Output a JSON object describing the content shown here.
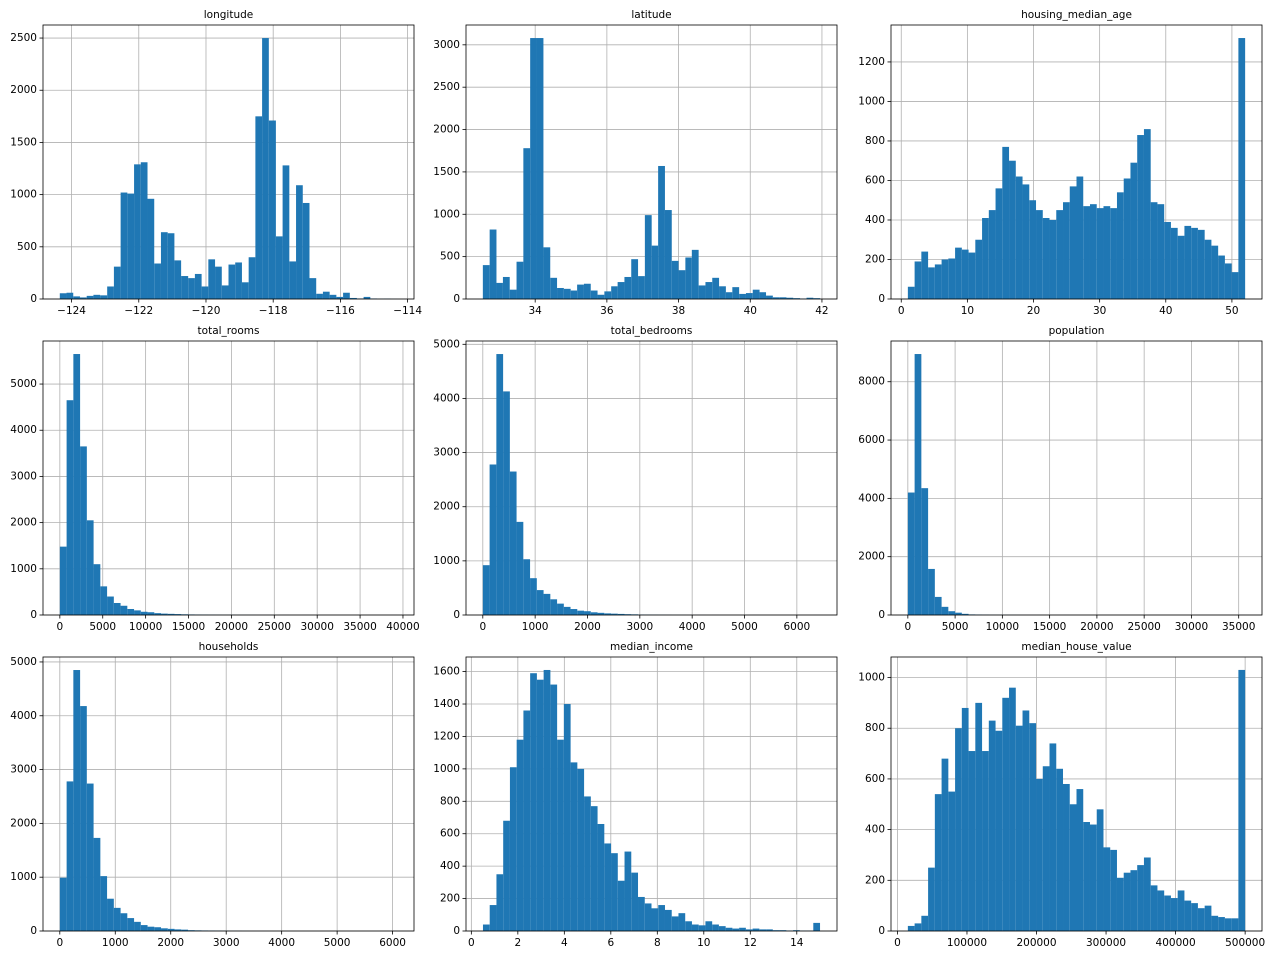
{
  "chart_data": [
    {
      "type": "histogram",
      "title": "longitude",
      "color": "#1f77b4",
      "grid": true,
      "bins": [
        -124.35,
        -124.15,
        -123.95,
        -123.75,
        -123.55,
        -123.35,
        -123.15,
        -122.94,
        -122.74,
        -122.54,
        -122.34,
        -122.14,
        -121.94,
        -121.74,
        -121.54,
        -121.34,
        -121.14,
        -120.94,
        -120.74,
        -120.53,
        -120.33,
        -120.13,
        -119.93,
        -119.73,
        -119.53,
        -119.33,
        -119.13,
        -118.93,
        -118.73,
        -118.53,
        -118.33,
        -118.13,
        -117.92,
        -117.72,
        -117.52,
        -117.32,
        -117.12,
        -116.92,
        -116.72,
        -116.52,
        -116.32,
        -116.12,
        -115.92,
        -115.72,
        -115.51,
        -115.31,
        -115.11,
        -114.91,
        -114.71,
        -114.51,
        -114.31
      ],
      "counts": [
        55,
        60,
        25,
        15,
        30,
        40,
        35,
        120,
        310,
        1020,
        1010,
        1290,
        1310,
        960,
        340,
        640,
        630,
        370,
        220,
        200,
        240,
        120,
        380,
        310,
        130,
        330,
        350,
        160,
        400,
        1750,
        2500,
        1710,
        600,
        1280,
        360,
        1090,
        920,
        200,
        50,
        70,
        40,
        20,
        60,
        10,
        5,
        20,
        5,
        2,
        3,
        1
      ],
      "xlim": [
        -124.85,
        -113.81
      ],
      "ylim": [
        0,
        2625
      ],
      "xticks": [
        {
          "value": -124,
          "label": "−124"
        },
        {
          "value": -122,
          "label": "−122"
        },
        {
          "value": -120,
          "label": "−120"
        },
        {
          "value": -118,
          "label": "−118"
        },
        {
          "value": -116,
          "label": "−116"
        },
        {
          "value": -114,
          "label": "−114"
        }
      ],
      "yticks": [
        0,
        500,
        1000,
        1500,
        2000,
        2500
      ]
    },
    {
      "type": "histogram",
      "title": "latitude",
      "color": "#1f77b4",
      "grid": true,
      "bins": [
        32.54,
        32.73,
        32.92,
        33.1,
        33.29,
        33.48,
        33.67,
        33.86,
        34.05,
        34.23,
        34.42,
        34.61,
        34.8,
        34.99,
        35.17,
        35.36,
        35.55,
        35.74,
        35.93,
        36.12,
        36.3,
        36.49,
        36.68,
        36.87,
        37.06,
        37.25,
        37.43,
        37.62,
        37.81,
        38.0,
        38.19,
        38.37,
        38.56,
        38.75,
        38.94,
        39.13,
        39.32,
        39.5,
        39.69,
        39.88,
        40.07,
        40.26,
        40.44,
        40.63,
        40.82,
        41.01,
        41.2,
        41.39,
        41.57,
        41.76,
        41.95
      ],
      "counts": [
        400,
        820,
        190,
        260,
        110,
        440,
        1780,
        3080,
        3080,
        610,
        250,
        130,
        120,
        100,
        170,
        180,
        100,
        50,
        90,
        150,
        200,
        260,
        470,
        270,
        990,
        630,
        1570,
        1050,
        450,
        340,
        490,
        580,
        160,
        200,
        250,
        150,
        80,
        140,
        60,
        70,
        110,
        80,
        40,
        20,
        20,
        15,
        10,
        5,
        15,
        10
      ],
      "xlim": [
        32.07,
        42.42
      ],
      "ylim": [
        0,
        3234
      ],
      "xticks": [
        34,
        36,
        38,
        40,
        42
      ],
      "yticks": [
        0,
        500,
        1000,
        1500,
        2000,
        2500,
        3000
      ]
    },
    {
      "type": "histogram",
      "title": "housing_median_age",
      "color": "#1f77b4",
      "grid": true,
      "bins": [
        1,
        2.02,
        3.04,
        4.06,
        5.08,
        6.1,
        7.12,
        8.14,
        9.16,
        10.18,
        11.2,
        12.22,
        13.24,
        14.26,
        15.28,
        16.3,
        17.32,
        18.34,
        19.36,
        20.38,
        21.4,
        22.42,
        23.44,
        24.46,
        25.48,
        26.5,
        27.52,
        28.54,
        29.56,
        30.58,
        31.6,
        32.62,
        33.64,
        34.66,
        35.68,
        36.7,
        37.72,
        38.74,
        39.76,
        40.78,
        41.8,
        42.82,
        43.84,
        44.86,
        45.88,
        46.9,
        47.92,
        48.94,
        49.96,
        50.98,
        52
      ],
      "counts": [
        62,
        190,
        240,
        160,
        175,
        200,
        205,
        260,
        250,
        235,
        300,
        410,
        450,
        560,
        770,
        700,
        620,
        580,
        500,
        450,
        410,
        400,
        450,
        490,
        570,
        620,
        470,
        480,
        460,
        470,
        460,
        540,
        610,
        690,
        830,
        860,
        490,
        480,
        390,
        360,
        320,
        370,
        360,
        350,
        300,
        270,
        220,
        180,
        136,
        1321
      ],
      "xlim": [
        -1.55,
        54.55
      ],
      "ylim": [
        0,
        1387
      ],
      "xticks": [
        0,
        10,
        20,
        30,
        40,
        50
      ],
      "yticks": [
        0,
        200,
        400,
        600,
        800,
        1000,
        1200
      ]
    },
    {
      "type": "histogram",
      "title": "total_rooms",
      "color": "#1f77b4",
      "grid": true,
      "bins": [
        2,
        788,
        1575,
        2361,
        3147,
        3934,
        4720,
        5507,
        6293,
        7079,
        7866,
        8652,
        9438,
        10225,
        11011,
        11797,
        12584,
        13370,
        14156,
        14943,
        15729,
        16516,
        17302,
        18088,
        18875,
        19661,
        20447,
        21234,
        22020,
        22806,
        23593,
        24379,
        25166,
        25952,
        26738,
        27525,
        28311,
        29097,
        29884,
        30670,
        31456,
        32243,
        33029,
        33815,
        34602,
        35388,
        36175,
        36961,
        37747,
        38534,
        39320
      ],
      "counts": [
        1480,
        4650,
        5650,
        3650,
        2050,
        1100,
        620,
        400,
        260,
        200,
        130,
        100,
        70,
        60,
        40,
        30,
        25,
        20,
        15,
        12,
        10,
        8,
        6,
        5,
        3,
        4,
        2,
        2,
        2,
        1,
        1,
        1,
        0,
        1,
        0,
        0,
        1,
        0,
        0,
        0,
        0,
        0,
        0,
        0,
        0,
        0,
        0,
        0,
        0,
        1
      ],
      "xlim": [
        -1964,
        41286
      ],
      "ylim": [
        0,
        5932
      ],
      "xticks": [
        0,
        5000,
        10000,
        15000,
        20000,
        25000,
        30000,
        35000,
        40000
      ],
      "yticks": [
        0,
        1000,
        2000,
        3000,
        4000,
        5000
      ]
    },
    {
      "type": "histogram",
      "title": "total_bedrooms",
      "color": "#1f77b4",
      "grid": true,
      "bins": [
        1,
        130,
        259,
        388,
        517,
        645,
        774,
        903,
        1032,
        1161,
        1290,
        1419,
        1548,
        1676,
        1805,
        1934,
        2063,
        2192,
        2321,
        2450,
        2579,
        2707,
        2836,
        2965,
        3094,
        3223,
        3352,
        3481,
        3610,
        3739,
        3867,
        3996,
        4125,
        4254,
        4383,
        4512,
        4641,
        4770,
        4898,
        5027,
        5156,
        5285,
        5414,
        5543,
        5672,
        5801,
        5929,
        6058,
        6187,
        6316,
        6445
      ],
      "counts": [
        920,
        2780,
        4820,
        4130,
        2650,
        1720,
        1030,
        680,
        460,
        390,
        290,
        210,
        150,
        110,
        80,
        70,
        50,
        40,
        30,
        25,
        20,
        15,
        12,
        8,
        6,
        5,
        4,
        3,
        2,
        2,
        1,
        1,
        1,
        0,
        1,
        0,
        0,
        0,
        0,
        0,
        1,
        0,
        0,
        0,
        0,
        0,
        0,
        0,
        0,
        1
      ],
      "xlim": [
        -321,
        6767
      ],
      "ylim": [
        0,
        5061
      ],
      "xticks": [
        0,
        1000,
        2000,
        3000,
        4000,
        5000,
        6000
      ],
      "yticks": [
        0,
        1000,
        2000,
        3000,
        4000,
        5000
      ]
    },
    {
      "type": "histogram",
      "title": "population",
      "color": "#1f77b4",
      "grid": true,
      "bins": [
        3,
        717,
        1430,
        2144,
        2857,
        3571,
        4284,
        4998,
        5712,
        6425,
        7139,
        7852,
        8566,
        9280,
        9993,
        10707,
        11420,
        12134,
        12847,
        13561,
        14275,
        14988,
        15702,
        16415,
        17129,
        17843,
        18556,
        19270,
        19983,
        20697,
        21410,
        22124,
        22838,
        23551,
        24265,
        24978,
        25692,
        26405,
        27119,
        27833,
        28546,
        29260,
        29973,
        30687,
        31401,
        32114,
        32828,
        33541,
        34255,
        34968,
        35682
      ],
      "counts": [
        4200,
        8950,
        4350,
        1580,
        620,
        280,
        130,
        80,
        40,
        20,
        15,
        10,
        6,
        5,
        3,
        3,
        2,
        1,
        1,
        1,
        0,
        0,
        0,
        1,
        0,
        0,
        0,
        0,
        0,
        0,
        0,
        0,
        0,
        0,
        0,
        0,
        0,
        0,
        0,
        0,
        0,
        0,
        0,
        0,
        0,
        0,
        0,
        0,
        0,
        1
      ],
      "xlim": [
        -1781,
        37466
      ],
      "ylim": [
        0,
        9397
      ],
      "xticks": [
        0,
        5000,
        10000,
        15000,
        20000,
        25000,
        30000,
        35000
      ],
      "yticks": [
        0,
        2000,
        4000,
        6000,
        8000
      ]
    },
    {
      "type": "histogram",
      "title": "households",
      "color": "#1f77b4",
      "grid": true,
      "bins": [
        1,
        123,
        244,
        366,
        487,
        609,
        731,
        852,
        974,
        1096,
        1217,
        1339,
        1460,
        1582,
        1704,
        1825,
        1947,
        2069,
        2190,
        2312,
        2433,
        2555,
        2677,
        2798,
        2920,
        3042,
        3163,
        3285,
        3406,
        3528,
        3650,
        3771,
        3893,
        4014,
        4136,
        4258,
        4379,
        4501,
        4623,
        4744,
        4866,
        4987,
        5109,
        5231,
        5352,
        5474,
        5596,
        5717,
        5839,
        5960,
        6082
      ],
      "counts": [
        990,
        2780,
        4850,
        4180,
        2740,
        1730,
        1020,
        600,
        430,
        330,
        240,
        170,
        110,
        80,
        70,
        50,
        40,
        30,
        25,
        15,
        12,
        10,
        8,
        6,
        4,
        3,
        3,
        2,
        1,
        1,
        1,
        0,
        0,
        0,
        0,
        0,
        0,
        0,
        0,
        0,
        0,
        0,
        0,
        0,
        0,
        0,
        0,
        0,
        0,
        1
      ],
      "xlim": [
        -303,
        6386
      ],
      "ylim": [
        0,
        5092
      ],
      "xticks": [
        0,
        1000,
        2000,
        3000,
        4000,
        5000,
        6000
      ],
      "yticks": [
        0,
        1000,
        2000,
        3000,
        4000,
        5000
      ]
    },
    {
      "type": "histogram",
      "title": "median_income",
      "color": "#1f77b4",
      "grid": true,
      "bins": [
        0.5,
        0.79,
        1.08,
        1.37,
        1.66,
        1.95,
        2.24,
        2.53,
        2.82,
        3.11,
        3.4,
        3.69,
        3.98,
        4.27,
        4.56,
        4.85,
        5.14,
        5.43,
        5.72,
        6.01,
        6.3,
        6.59,
        6.88,
        7.17,
        7.46,
        7.75,
        8.04,
        8.33,
        8.62,
        8.91,
        9.2,
        9.49,
        9.78,
        10.07,
        10.36,
        10.65,
        10.94,
        11.23,
        11.52,
        11.81,
        12.1,
        12.39,
        12.68,
        12.97,
        13.26,
        13.55,
        13.84,
        14.13,
        14.42,
        14.71,
        15
      ],
      "counts": [
        40,
        160,
        350,
        680,
        1010,
        1180,
        1360,
        1590,
        1550,
        1610,
        1520,
        1180,
        1400,
        1040,
        1000,
        830,
        770,
        660,
        540,
        480,
        310,
        490,
        360,
        210,
        170,
        140,
        160,
        130,
        90,
        110,
        60,
        40,
        35,
        60,
        40,
        30,
        20,
        15,
        20,
        10,
        15,
        10,
        10,
        5,
        5,
        3,
        5,
        2,
        2,
        50
      ],
      "xlim": [
        -0.23,
        15.73
      ],
      "ylim": [
        0,
        1690
      ],
      "xticks": [
        0,
        2,
        4,
        6,
        8,
        10,
        12,
        14
      ],
      "yticks": [
        0,
        200,
        400,
        600,
        800,
        1000,
        1200,
        1400,
        1600
      ]
    },
    {
      "type": "histogram",
      "title": "median_house_value",
      "color": "#1f77b4",
      "grid": true,
      "bins": [
        14999,
        24699,
        34399,
        44099,
        53799,
        63499,
        73199,
        82899,
        92599,
        102299,
        111999,
        121699,
        131399,
        141099,
        150799,
        160499,
        170199,
        179899,
        189599,
        199299,
        208999,
        218699,
        228399,
        238099,
        247799,
        257499,
        267199,
        276899,
        286599,
        296299,
        305999,
        315699,
        325399,
        335099,
        344799,
        354499,
        364199,
        373899,
        383599,
        393299,
        402999,
        412699,
        422399,
        432099,
        441799,
        451499,
        461199,
        470899,
        480599,
        490299,
        500001
      ],
      "counts": [
        20,
        30,
        60,
        250,
        540,
        680,
        550,
        800,
        880,
        710,
        900,
        710,
        830,
        790,
        920,
        960,
        810,
        870,
        820,
        600,
        650,
        740,
        640,
        580,
        500,
        560,
        430,
        420,
        480,
        330,
        320,
        210,
        230,
        240,
        260,
        290,
        180,
        160,
        140,
        130,
        160,
        120,
        110,
        90,
        100,
        60,
        55,
        50,
        50,
        1030
      ],
      "xlim": [
        -9251,
        524251
      ],
      "ylim": [
        0,
        1081
      ],
      "xticks": [
        0,
        100000,
        200000,
        300000,
        400000,
        500000
      ],
      "yticks": [
        0,
        200,
        400,
        600,
        800,
        1000
      ]
    }
  ]
}
